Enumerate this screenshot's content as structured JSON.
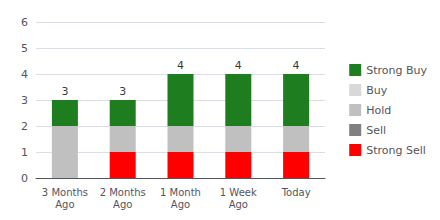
{
  "chart_data": {
    "type": "bar",
    "stacked": true,
    "categories": [
      "3 Months\nAgo",
      "2 Months\nAgo",
      "1 Month\nAgo",
      "1 Week\nAgo",
      "Today"
    ],
    "series": [
      {
        "name": "Strong Buy",
        "color": "#1e7d1e",
        "values": [
          1,
          1,
          2,
          2,
          2
        ]
      },
      {
        "name": "Buy",
        "color": "#d8d8d8",
        "values": [
          0,
          0,
          0,
          0,
          0
        ]
      },
      {
        "name": "Hold",
        "color": "#c0c0c0",
        "values": [
          2,
          1,
          1,
          1,
          1
        ]
      },
      {
        "name": "Sell",
        "color": "#808080",
        "values": [
          0,
          0,
          0,
          0,
          0
        ]
      },
      {
        "name": "Strong Sell",
        "color": "#ff0000",
        "values": [
          0,
          1,
          1,
          1,
          1
        ]
      }
    ],
    "totals": [
      3,
      3,
      4,
      4,
      4
    ],
    "ylim": [
      0,
      6
    ],
    "yticks": [
      0,
      1,
      2,
      3,
      4,
      5,
      6
    ],
    "grid": true,
    "legend": "right"
  }
}
